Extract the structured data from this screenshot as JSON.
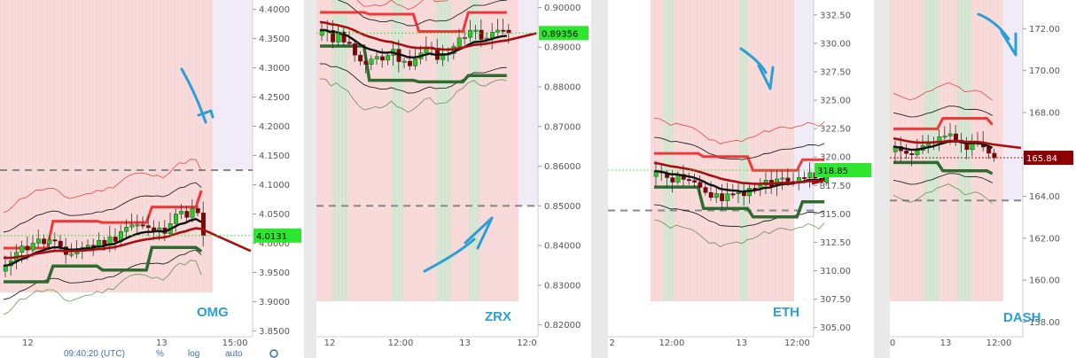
{
  "chart_data": [
    {
      "type": "candlestick",
      "symbol": "OMG",
      "y_ticks": [
        "4.4000",
        "4.3500",
        "4.3000",
        "4.2500",
        "4.2000",
        "4.1500",
        "4.1000",
        "4.0500",
        "4.0000",
        "3.9500",
        "3.9000",
        "3.8500"
      ],
      "ylim": [
        3.84,
        4.41
      ],
      "last_price": "4.0131",
      "last_price_value": 4.0131,
      "x_ticks": [
        "12",
        "13",
        "15:00"
      ],
      "x_tick_pos": [
        0.11,
        0.64,
        0.93
      ],
      "reference_level": 4.125,
      "footer": {
        "time": "09:40:20 (UTC)",
        "percent": "%",
        "log": "log",
        "auto": "auto"
      },
      "trend_arrow": "down"
    },
    {
      "type": "candlestick",
      "symbol": "ZRX",
      "y_ticks": [
        "0.90000",
        "0.89000",
        "0.88000",
        "0.87000",
        "0.86000",
        "0.85000",
        "0.84000",
        "0.83000",
        "0.82000"
      ],
      "ylim": [
        0.817,
        0.901
      ],
      "last_price": "0.89356",
      "last_price_value": 0.89356,
      "x_ticks": [
        "12",
        "12:00",
        "13",
        "12:0"
      ],
      "x_tick_pos": [
        0.06,
        0.38,
        0.67,
        0.95
      ],
      "reference_level": 0.85,
      "trend_arrow": "up"
    },
    {
      "type": "candlestick",
      "symbol": "ETH",
      "y_ticks": [
        "332.50",
        "330.00",
        "327.50",
        "325.00",
        "322.50",
        "320.00",
        "317.50",
        "315.00",
        "312.50",
        "310.00",
        "307.50",
        "305.00"
      ],
      "ylim": [
        304.2,
        333.5
      ],
      "last_price": "318.85",
      "last_price_value": 318.85,
      "x_ticks": [
        "2",
        "12:00",
        "13",
        "12:00"
      ],
      "x_tick_pos": [
        0.02,
        0.31,
        0.65,
        0.92
      ],
      "reference_level": 315.3,
      "trend_arrow": "down"
    },
    {
      "type": "candlestick",
      "symbol": "DASH",
      "y_ticks": [
        "172.00",
        "170.00",
        "168.00",
        "166.00",
        "164.00",
        "162.00",
        "160.00",
        "158.00"
      ],
      "ylim": [
        157.3,
        173.2
      ],
      "last_price": "165.84",
      "last_price_value": 165.84,
      "x_ticks": [
        "0",
        "13",
        "12:00"
      ],
      "x_tick_pos": [
        0.02,
        0.42,
        0.82
      ],
      "reference_level": 163.8,
      "trend_arrow": "down"
    }
  ],
  "colors": {
    "bull": "#22cc22",
    "bear": "#8b0000",
    "pink_zone": "#f6c9c9",
    "green_zone": "#cfe6cf",
    "lavender_zone": "#ece6f5",
    "price_tag_green": "#2ee62e",
    "price_tag_red": "#8b0000",
    "ticker_text": "#2a9fd6",
    "annotation_arrow": "#2a9fd6"
  }
}
